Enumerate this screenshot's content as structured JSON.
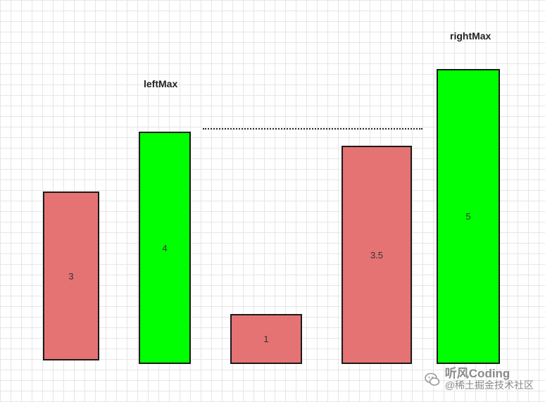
{
  "labels": {
    "left_max": "leftMax",
    "right_max": "rightMax"
  },
  "bars": [
    {
      "name": "bar-1",
      "value": "3",
      "color": "#e57373",
      "role": "normal"
    },
    {
      "name": "bar-2",
      "value": "4",
      "color": "#00ff00",
      "role": "left-max"
    },
    {
      "name": "bar-3",
      "value": "1",
      "color": "#e57373",
      "role": "normal"
    },
    {
      "name": "bar-4",
      "value": "3.5",
      "color": "#e57373",
      "role": "normal"
    },
    {
      "name": "bar-5",
      "value": "5",
      "color": "#00ff00",
      "role": "right-max"
    }
  ],
  "colors": {
    "normal_bar": "#e57373",
    "max_bar": "#00ff00",
    "border": "#1a1a1a",
    "grid": "#e6e6e6"
  },
  "watermark": {
    "name": "听风Coding",
    "sub": "@稀土掘金技术社区",
    "icon": "wechat-bubble-icon"
  }
}
